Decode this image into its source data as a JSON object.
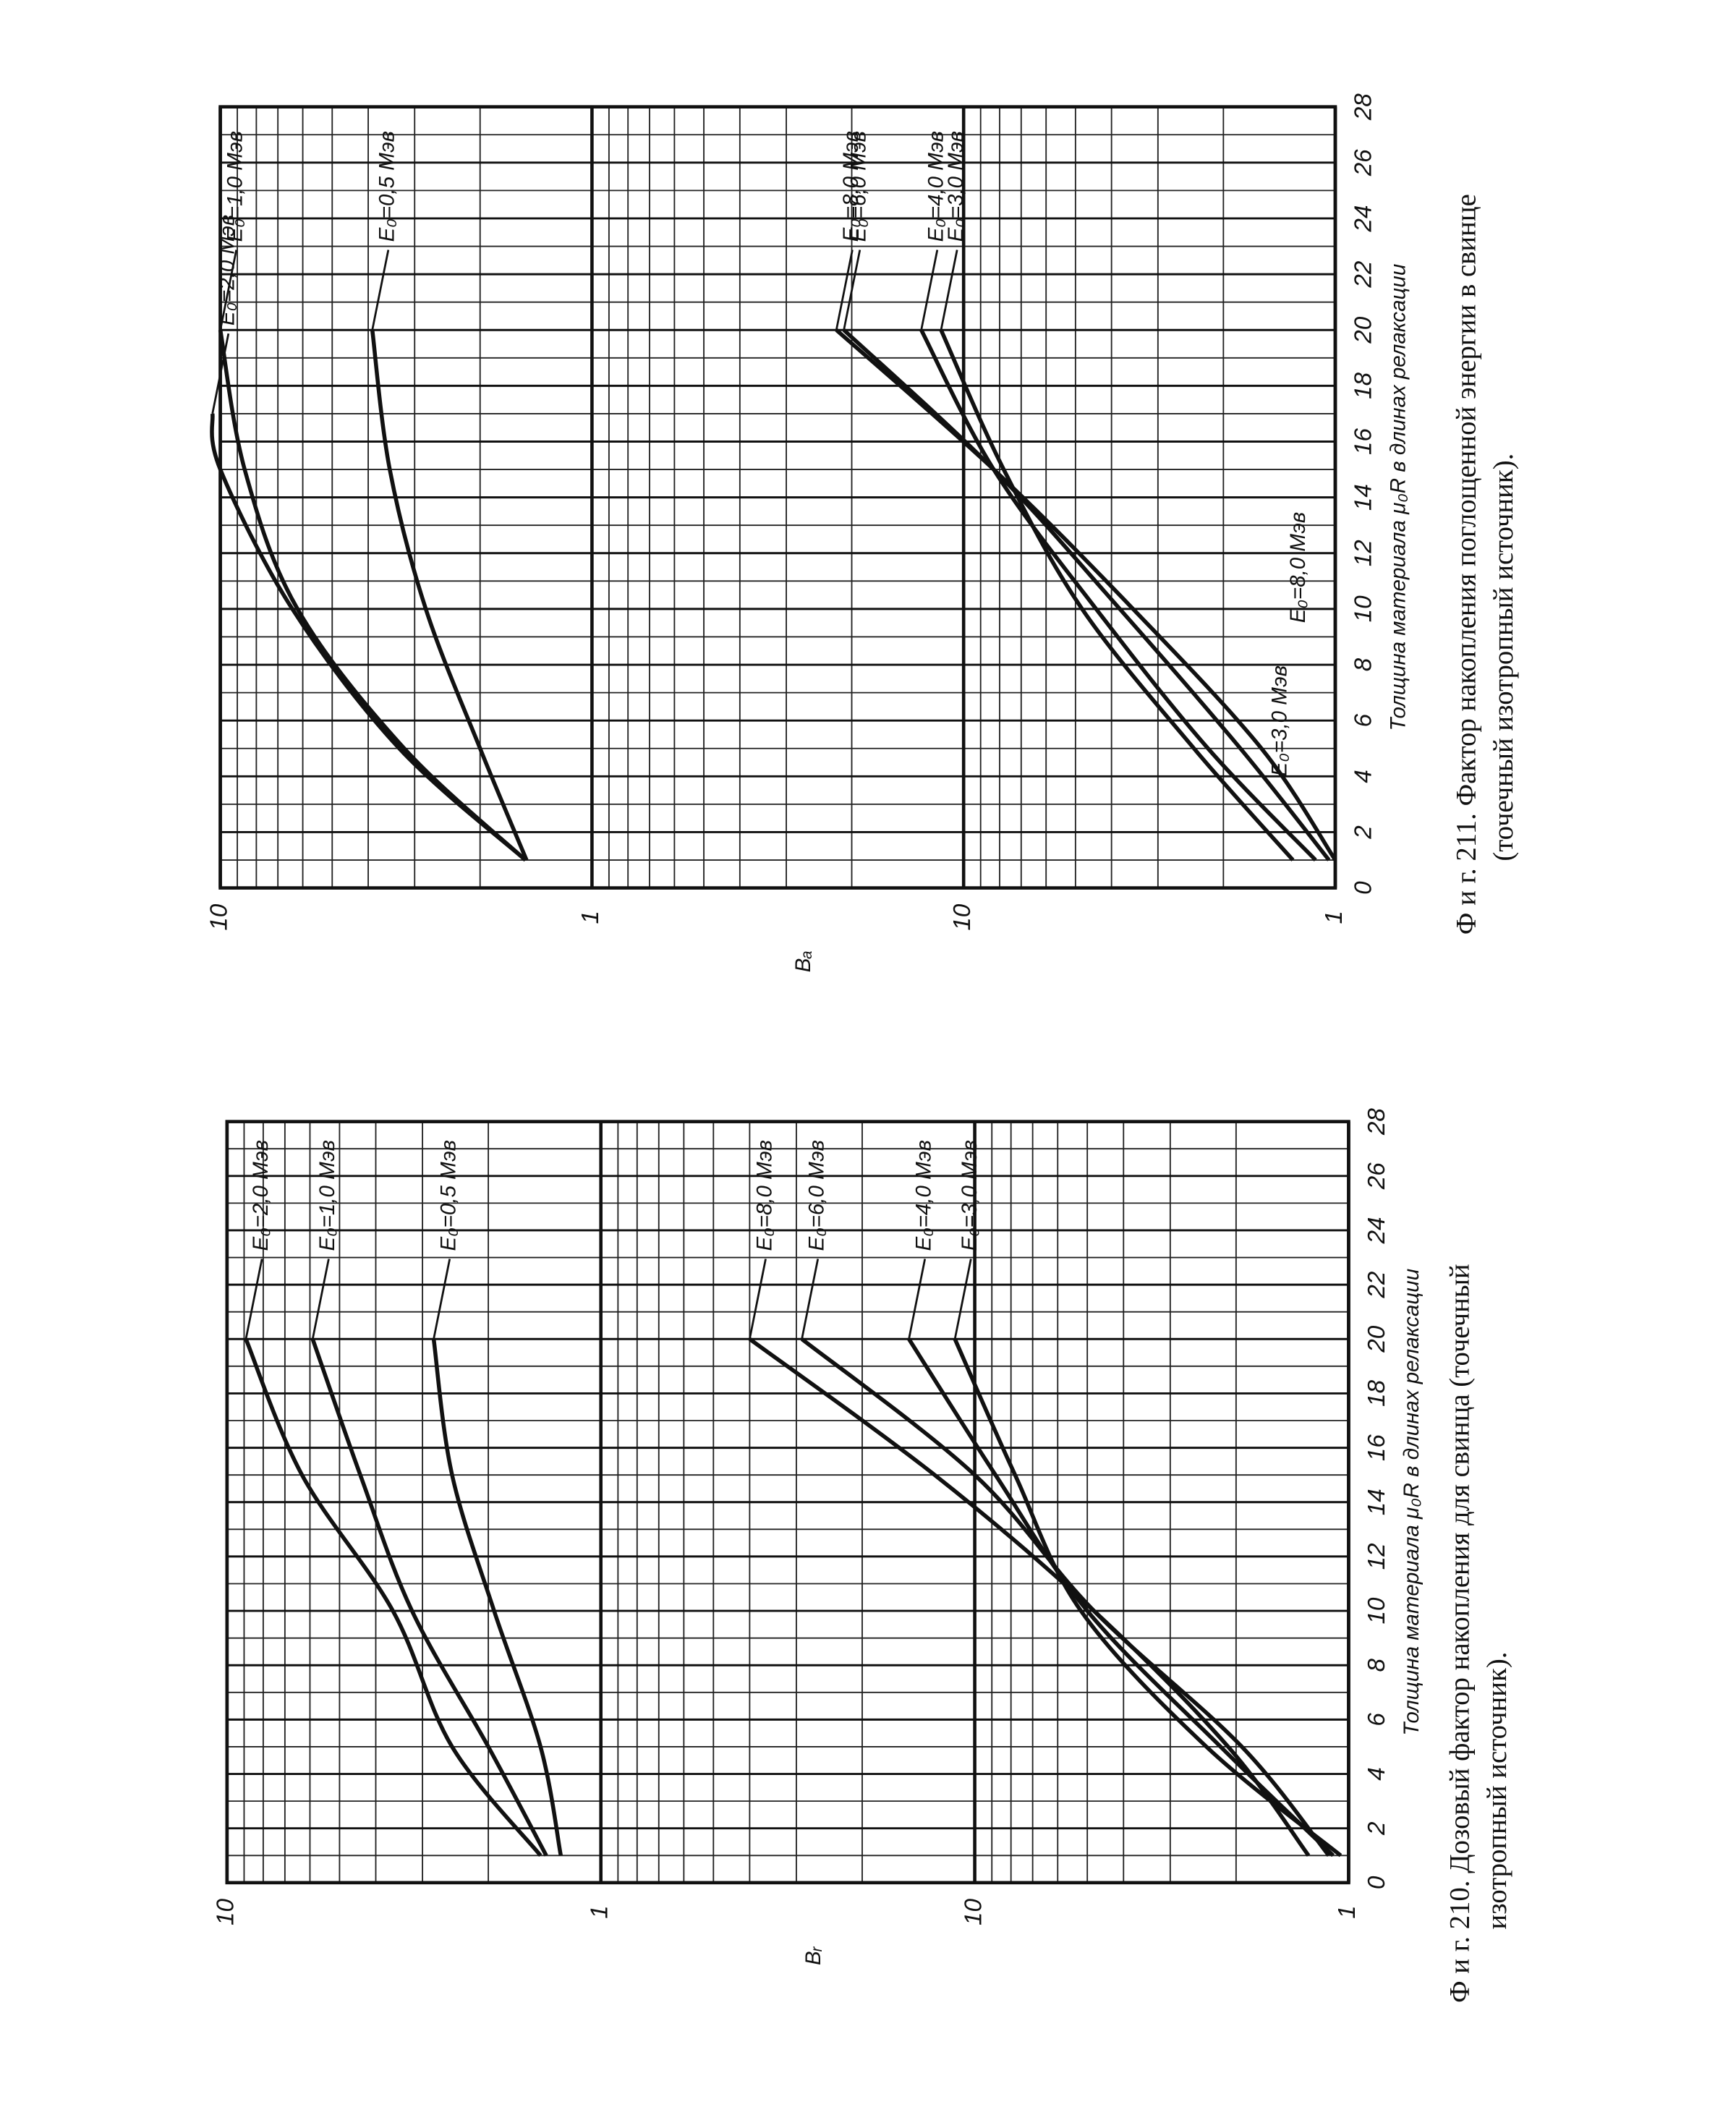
{
  "chart_data": [
    {
      "type": "line",
      "log_y": true,
      "grid": true,
      "color": "#111111",
      "title": [
        "Ф и г. 210. Дозовый фактор накопления для свинца (точечный",
        "изотропный источник)."
      ],
      "xlabel": "Толщина материала μ₀R в длинах релаксации",
      "ylabel": "Bᵣ",
      "xlim": [
        0,
        28
      ],
      "xticks": [
        0,
        2,
        4,
        6,
        8,
        10,
        12,
        14,
        16,
        18,
        20,
        22,
        24,
        26,
        28
      ],
      "ylim": [
        1,
        1000
      ],
      "yticks": [
        1,
        10
      ],
      "y2lim": [
        0.01,
        10
      ],
      "y2ticks": [
        1,
        10
      ],
      "series": [
        {
          "name": "E₀=2,0 Мэв",
          "axis": "y2",
          "x": [
            1,
            5,
            10,
            15,
            20
          ],
          "values": [
            1.45,
            2.5,
            3.6,
            6.3,
            8.9
          ]
        },
        {
          "name": "E₀=1,0 Мэв",
          "axis": "y2",
          "x": [
            1,
            5,
            10,
            15,
            20
          ],
          "values": [
            1.4,
            2.0,
            3.2,
            4.4,
            5.9
          ]
        },
        {
          "name": "E₀=0,5 Мэв",
          "axis": "y2",
          "x": [
            1,
            5,
            10,
            15,
            20
          ],
          "values": [
            1.28,
            1.45,
            1.93,
            2.5,
            2.8
          ]
        },
        {
          "name": "E₀=8,0 Мэв",
          "x": [
            1,
            5,
            10,
            15,
            20
          ],
          "values": [
            1.28,
            2.1,
            4.8,
            12.8,
            40
          ]
        },
        {
          "name": "E₀=6,0 Мэв",
          "x": [
            1,
            5,
            10,
            15,
            20
          ],
          "values": [
            1.13,
            1.93,
            4.8,
            10,
            29
          ]
        },
        {
          "name": "E₀=4,0 Мэв",
          "x": [
            1,
            5,
            10,
            15,
            20
          ],
          "values": [
            1.1,
            2.2,
            5,
            8.8,
            15
          ]
        },
        {
          "name": "E₀=3,0 Мэв",
          "x": [
            1,
            5,
            10,
            15,
            20
          ],
          "values": [
            1.05,
            2.4,
            5.2,
            7.8,
            11.3
          ]
        }
      ]
    },
    {
      "type": "line",
      "log_y": true,
      "grid": true,
      "color": "#111111",
      "title": [
        "Ф и г. 211. Фактор накопления поглощенной энергии в свинце",
        "(точечный изотропный источник)."
      ],
      "xlabel": "Толщина материала μ₀R в длинах релаксации",
      "ylabel": "Bₐ",
      "xlim": [
        0,
        28
      ],
      "xticks": [
        0,
        2,
        4,
        6,
        8,
        10,
        12,
        14,
        16,
        18,
        20,
        22,
        24,
        26,
        28
      ],
      "ylim": [
        1,
        1000
      ],
      "yticks": [
        1,
        10
      ],
      "y2lim": [
        0.01,
        10
      ],
      "y2ticks": [
        1,
        10
      ],
      "annotations": [
        "E₀=3,0 Мэв",
        "E₀=8,0 Мэв"
      ],
      "series": [
        {
          "name": "E₀=2,0 Мэв",
          "axis": "y2",
          "x": [
            1,
            5,
            10,
            15,
            17
          ],
          "values": [
            1.51,
            3.3,
            6.4,
            10,
            10.5
          ]
        },
        {
          "name": "E₀=1,0 Мэв",
          "axis": "y2",
          "x": [
            1,
            5,
            10,
            15,
            20
          ],
          "values": [
            1.51,
            3.2,
            6.2,
            8.6,
            10
          ]
        },
        {
          "name": "E₀=0,5 Мэв",
          "axis": "y2",
          "x": [
            1,
            5,
            10,
            15,
            20
          ],
          "values": [
            1.5,
            2.0,
            2.8,
            3.5,
            3.9
          ]
        },
        {
          "name": "E₀=8,0 Мэв",
          "x": [
            1,
            5,
            10,
            15,
            20
          ],
          "values": [
            1.0,
            1.58,
            3.5,
            8.3,
            22
          ]
        },
        {
          "name": "E₀=6,0 Мэв",
          "x": [
            1,
            5,
            10,
            15,
            20
          ],
          "values": [
            1.04,
            1.8,
            3.8,
            8.3,
            21
          ]
        },
        {
          "name": "E₀=4,0 Мэв",
          "x": [
            1,
            5,
            10,
            15,
            20
          ],
          "values": [
            1.13,
            2.2,
            4.4,
            8.3,
            13
          ]
        },
        {
          "name": "E₀=3,0 Мэв",
          "x": [
            1,
            5,
            10,
            15,
            20
          ],
          "values": [
            1.3,
            2.4,
            4.8,
            7.8,
            11.5
          ]
        }
      ]
    }
  ]
}
